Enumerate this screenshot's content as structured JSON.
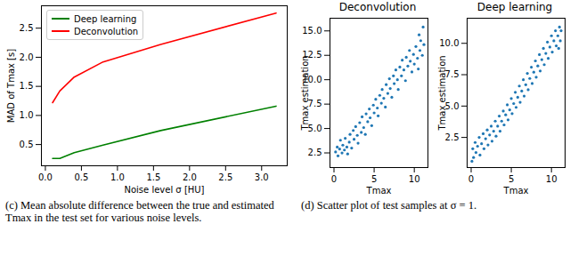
{
  "chart_data": [
    {
      "type": "line",
      "xlabel": "Noise level σ [HU]",
      "ylabel": "MAD of Tmax [s]",
      "x": [
        0.1,
        0.2,
        0.4,
        0.8,
        1.6,
        3.2
      ],
      "series": [
        {
          "name": "Deep learning",
          "color": "#008000",
          "values": [
            0.26,
            0.26,
            0.36,
            0.49,
            0.74,
            1.16
          ]
        },
        {
          "name": "Deconvolution",
          "color": "#ff0000",
          "values": [
            1.22,
            1.42,
            1.66,
            1.92,
            2.22,
            2.76
          ]
        }
      ],
      "xlim": [
        -0.055,
        3.355
      ],
      "ylim": [
        0.135,
        2.885
      ],
      "xticks": [
        {
          "value": 0,
          "label": "0.0"
        },
        {
          "value": 0.5,
          "label": "0.5"
        },
        {
          "value": 1,
          "label": "1.0"
        },
        {
          "value": 1.5,
          "label": "1.5"
        },
        {
          "value": 2,
          "label": "2.0"
        },
        {
          "value": 2.5,
          "label": "2.5"
        },
        {
          "value": 3,
          "label": "3.0"
        }
      ],
      "yticks": [
        {
          "value": 0.5,
          "label": "0.5"
        },
        {
          "value": 1,
          "label": "1.0"
        },
        {
          "value": 1.5,
          "label": "1.5"
        },
        {
          "value": 2,
          "label": "2.0"
        },
        {
          "value": 2.5,
          "label": "2.5"
        }
      ],
      "legend": "upper left",
      "grid": false,
      "caption": "(c) Mean absolute difference between the true and estimated Tmax in the test set for various noise levels."
    },
    {
      "type": "scatter",
      "title": "Deconvolution",
      "xlabel": "Tmax",
      "ylabel": "Tmax estimation",
      "color": "#1f77b4",
      "x": [
        0.2,
        0.4,
        0.5,
        0.7,
        0.8,
        1.0,
        1.1,
        1.3,
        1.4,
        1.6,
        1.7,
        1.9,
        2.0,
        2.2,
        2.4,
        2.5,
        2.7,
        2.9,
        3.0,
        3.2,
        3.4,
        3.5,
        3.7,
        3.9,
        4.0,
        4.2,
        4.4,
        4.5,
        4.7,
        4.9,
        5.0,
        5.2,
        5.4,
        5.5,
        5.7,
        5.9,
        6.0,
        6.2,
        6.4,
        6.5,
        6.7,
        6.9,
        7.0,
        7.2,
        7.4,
        7.5,
        7.7,
        7.9,
        8.0,
        8.2,
        8.4,
        8.5,
        8.7,
        8.9,
        9.0,
        9.2,
        9.4,
        9.5,
        9.7,
        9.9,
        10.0,
        10.2,
        10.4,
        10.5,
        10.7,
        10.8,
        11.0,
        11.1,
        11.2,
        10.6
      ],
      "values": [
        2.6,
        3.1,
        2.2,
        2.9,
        3.8,
        2.5,
        3.3,
        2.8,
        4.0,
        3.1,
        2.4,
        3.6,
        4.4,
        3.0,
        4.8,
        3.9,
        5.2,
        4.3,
        3.5,
        5.6,
        4.6,
        6.2,
        5.1,
        4.4,
        6.5,
        5.7,
        7.0,
        6.1,
        5.3,
        7.4,
        6.6,
        8.0,
        7.1,
        6.3,
        8.4,
        7.6,
        9.0,
        8.1,
        7.2,
        9.5,
        8.6,
        10.1,
        9.1,
        8.2,
        10.4,
        9.6,
        11.0,
        10.0,
        9.0,
        11.3,
        10.4,
        12.0,
        11.0,
        9.9,
        12.3,
        11.4,
        13.0,
        11.9,
        10.8,
        12.6,
        11.6,
        13.4,
        12.2,
        11.1,
        13.0,
        14.0,
        12.5,
        15.4,
        13.6,
        14.6
      ],
      "xlim": [
        -0.5,
        11.7
      ],
      "ylim": [
        1.0,
        16.3
      ],
      "xticks": [
        0,
        5,
        10
      ],
      "yticks": [
        2.5,
        {
          "value": 5,
          "label": "5.0"
        },
        7.5,
        {
          "value": 10,
          "label": "10.0"
        },
        12.5,
        {
          "value": 15,
          "label": "15.0"
        }
      ],
      "grid": false
    },
    {
      "type": "scatter",
      "title": "Deep learning",
      "xlabel": "Tmax",
      "ylabel": "Tmax estimation",
      "color": "#1f77b4",
      "x": [
        0.2,
        0.3,
        0.5,
        0.6,
        0.8,
        1.0,
        1.1,
        1.3,
        1.5,
        1.6,
        1.8,
        2.0,
        2.1,
        2.3,
        2.5,
        2.6,
        2.8,
        3.0,
        3.1,
        3.3,
        3.5,
        3.6,
        3.8,
        4.0,
        4.1,
        4.3,
        4.5,
        4.6,
        4.8,
        5.0,
        5.1,
        5.3,
        5.5,
        5.6,
        5.8,
        6.0,
        6.1,
        6.3,
        6.5,
        6.6,
        6.8,
        7.0,
        7.1,
        7.3,
        7.5,
        7.6,
        7.8,
        8.0,
        8.1,
        8.3,
        8.5,
        8.6,
        8.8,
        9.0,
        9.1,
        9.3,
        9.5,
        9.6,
        9.8,
        10.0,
        10.1,
        10.3,
        10.5,
        10.6,
        10.8,
        11.0,
        11.1,
        11.2,
        10.9,
        0.1
      ],
      "values": [
        1.6,
        0.9,
        2.1,
        1.3,
        1.8,
        2.5,
        1.1,
        2.0,
        2.8,
        1.6,
        2.4,
        3.1,
        1.9,
        2.7,
        3.4,
        2.2,
        3.0,
        3.8,
        2.6,
        3.4,
        4.2,
        3.0,
        3.8,
        4.6,
        3.5,
        4.3,
        5.1,
        3.9,
        4.7,
        5.6,
        4.4,
        5.2,
        6.1,
        4.9,
        5.7,
        6.6,
        5.3,
        6.2,
        7.1,
        5.8,
        6.7,
        7.6,
        6.3,
        7.2,
        8.1,
        6.8,
        7.7,
        8.6,
        7.3,
        8.2,
        9.1,
        7.8,
        8.7,
        9.6,
        8.3,
        9.2,
        10.1,
        8.8,
        9.7,
        10.6,
        9.3,
        10.2,
        11.0,
        9.8,
        10.6,
        11.3,
        10.2,
        11.0,
        9.6,
        0.6
      ],
      "xlim": [
        -0.5,
        11.7
      ],
      "ylim": [
        0.1,
        12.0
      ],
      "xticks": [
        0,
        5,
        10
      ],
      "yticks": [
        2.5,
        {
          "value": 5,
          "label": "5.0"
        },
        7.5,
        {
          "value": 10,
          "label": "10.0"
        }
      ],
      "grid": false,
      "caption": "(d) Scatter plot of test samples at σ = 1."
    }
  ]
}
